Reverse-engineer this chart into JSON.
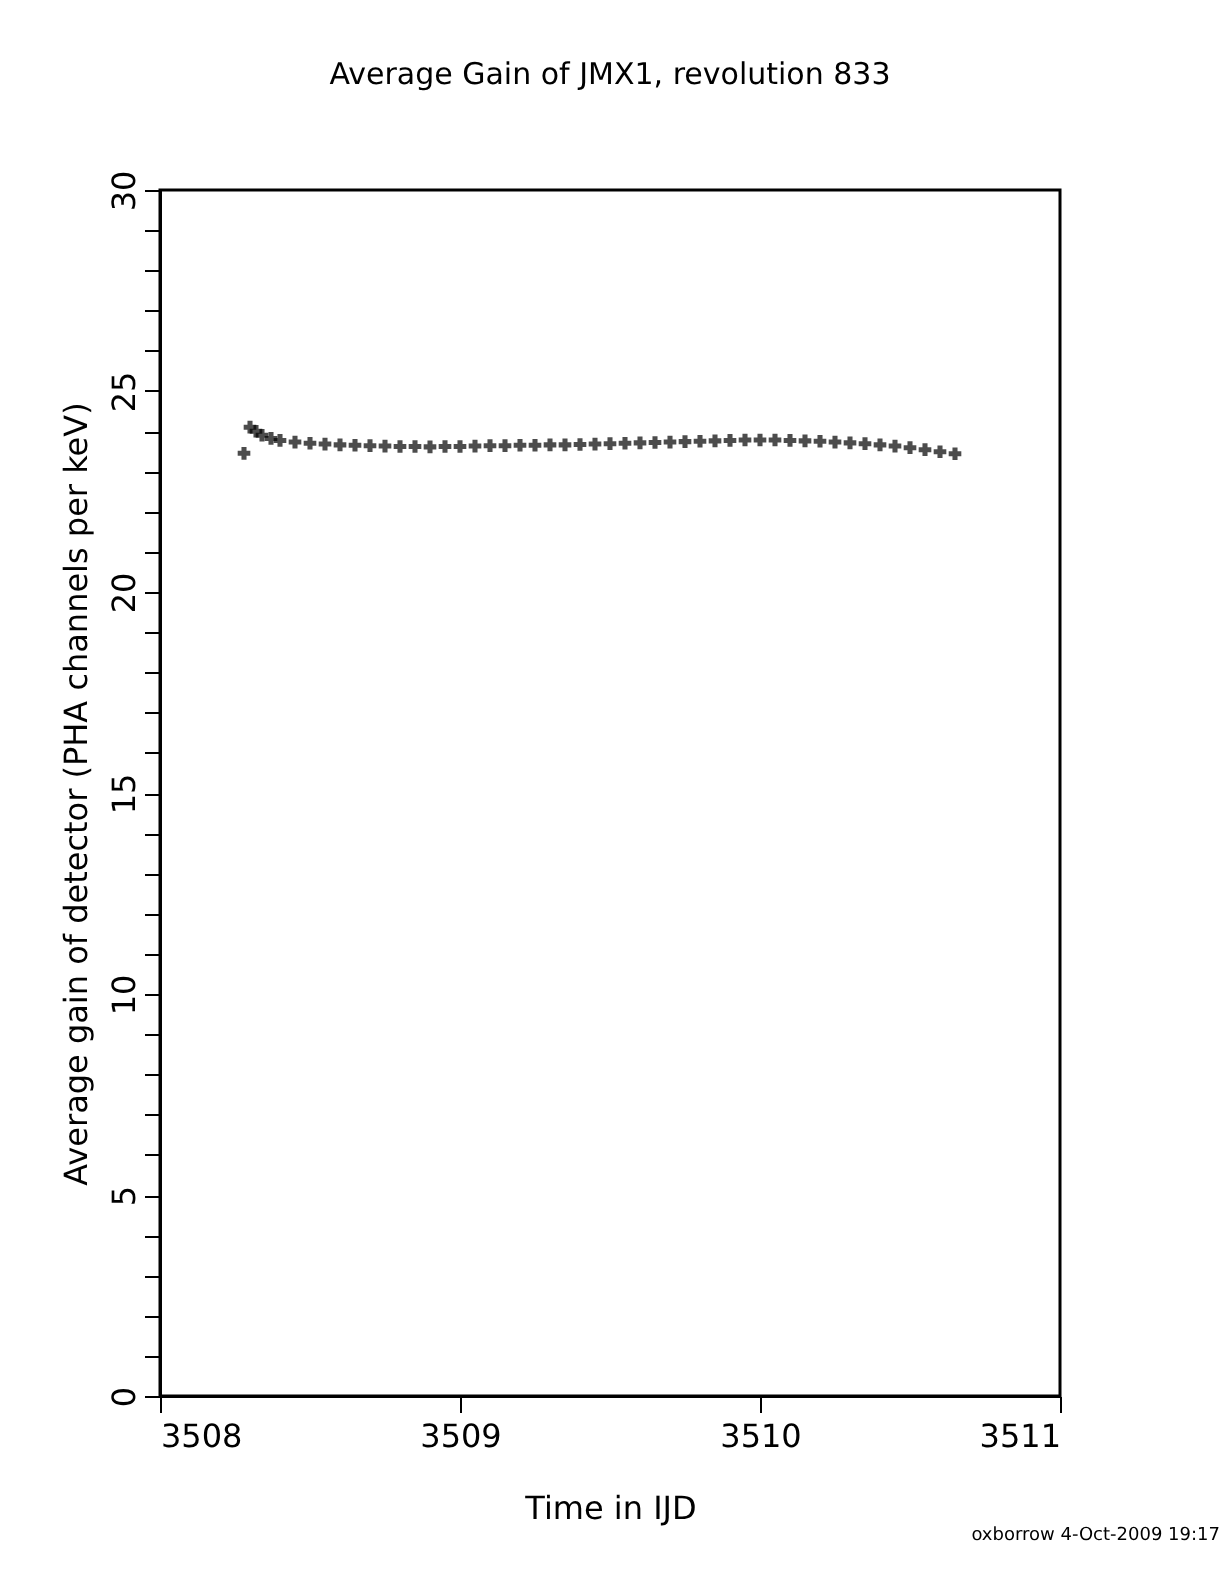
{
  "chart_data": {
    "type": "scatter",
    "title": "Average Gain of JMX1, revolution 833",
    "xlabel": "Time in IJD",
    "ylabel": "Average gain of detector (PHA channels per keV)",
    "x": [
      3508.28,
      3508.3,
      3508.32,
      3508.34,
      3508.37,
      3508.4,
      3508.45,
      3508.5,
      3508.55,
      3508.6,
      3508.65,
      3508.7,
      3508.75,
      3508.8,
      3508.85,
      3508.9,
      3508.95,
      3509.0,
      3509.05,
      3509.1,
      3509.15,
      3509.2,
      3509.25,
      3509.3,
      3509.35,
      3509.4,
      3509.45,
      3509.5,
      3509.55,
      3509.6,
      3509.65,
      3509.7,
      3509.75,
      3509.8,
      3509.85,
      3509.9,
      3509.95,
      3510.0,
      3510.05,
      3510.1,
      3510.15,
      3510.2,
      3510.25,
      3510.3,
      3510.35,
      3510.4,
      3510.45,
      3510.5,
      3510.55,
      3510.6,
      3510.65
    ],
    "values": [
      23.45,
      24.1,
      24.0,
      23.9,
      23.82,
      23.77,
      23.73,
      23.7,
      23.68,
      23.66,
      23.65,
      23.64,
      23.63,
      23.62,
      23.62,
      23.61,
      23.62,
      23.62,
      23.63,
      23.64,
      23.64,
      23.65,
      23.65,
      23.66,
      23.66,
      23.67,
      23.68,
      23.69,
      23.7,
      23.71,
      23.72,
      23.73,
      23.74,
      23.75,
      23.76,
      23.77,
      23.78,
      23.78,
      23.78,
      23.77,
      23.76,
      23.75,
      23.73,
      23.71,
      23.69,
      23.66,
      23.63,
      23.59,
      23.54,
      23.49,
      23.44
    ],
    "color": "#000000",
    "marker": "cross",
    "grid": false,
    "xlim": [
      3508,
      3511
    ],
    "xticks": [
      3508,
      3509,
      3510,
      3511
    ],
    "ylim": [
      0,
      30
    ],
    "yticks": [
      0,
      {
        "value": 1,
        "label": null
      },
      {
        "value": 2,
        "label": null
      },
      {
        "value": 3,
        "label": null
      },
      {
        "value": 4,
        "label": null
      },
      5,
      {
        "value": 6,
        "label": null
      },
      {
        "value": 7,
        "label": null
      },
      {
        "value": 8,
        "label": null
      },
      {
        "value": 9,
        "label": null
      },
      10,
      {
        "value": 11,
        "label": null
      },
      {
        "value": 12,
        "label": null
      },
      {
        "value": 13,
        "label": null
      },
      {
        "value": 14,
        "label": null
      },
      15,
      {
        "value": 16,
        "label": null
      },
      {
        "value": 17,
        "label": null
      },
      {
        "value": 18,
        "label": null
      },
      {
        "value": 19,
        "label": null
      },
      20,
      {
        "value": 21,
        "label": null
      },
      {
        "value": 22,
        "label": null
      },
      {
        "value": 23,
        "label": null
      },
      {
        "value": 24,
        "label": null
      },
      25,
      {
        "value": 26,
        "label": null
      },
      {
        "value": 27,
        "label": null
      },
      {
        "value": 28,
        "label": null
      },
      {
        "value": 29,
        "label": null
      },
      30
    ],
    "annotations": [
      "oxborrow  4-Oct-2009 19:17"
    ]
  }
}
